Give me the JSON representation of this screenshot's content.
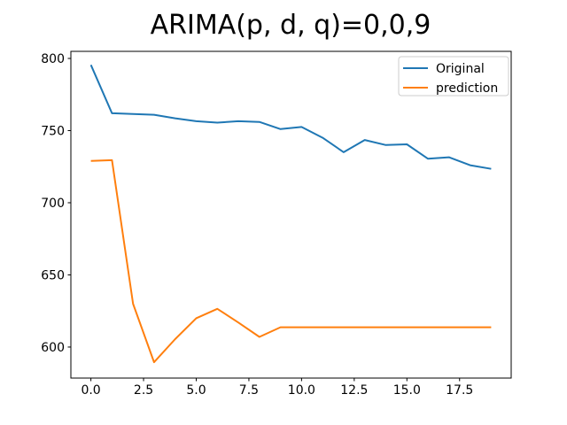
{
  "chart_data": {
    "type": "line",
    "title": "ARIMA(p, d, q)=0,0,9",
    "xlabel": "",
    "ylabel": "",
    "x": [
      0,
      1,
      2,
      3,
      4,
      5,
      6,
      7,
      8,
      9,
      10,
      11,
      12,
      13,
      14,
      15,
      16,
      17,
      18,
      19
    ],
    "series": [
      {
        "name": "Original",
        "color": "#1f77b4",
        "values": [
          795.5,
          762,
          761.5,
          761,
          758.5,
          756.5,
          755.5,
          756.5,
          756,
          751,
          752.5,
          745,
          735,
          743.5,
          740,
          740.5,
          730.5,
          731.5,
          726,
          723.5
        ]
      },
      {
        "name": "prediction",
        "color": "#ff7f0e",
        "values": [
          729,
          729.5,
          630,
          589.5,
          605.5,
          620,
          626.5,
          617,
          607,
          613.7,
          613.7,
          613.7,
          613.7,
          613.7,
          613.7,
          613.7,
          613.7,
          613.7,
          613.7,
          613.7
        ]
      }
    ],
    "xlim": [
      -0.95,
      19.95
    ],
    "ylim": [
      578.5,
      804.9
    ],
    "xticks": [
      0.0,
      2.5,
      5.0,
      7.5,
      10.0,
      12.5,
      15.0,
      17.5
    ],
    "xtick_labels": [
      "0.0",
      "2.5",
      "5.0",
      "7.5",
      "10.0",
      "12.5",
      "15.0",
      "17.5"
    ],
    "yticks": [
      600,
      650,
      700,
      750,
      800
    ],
    "ytick_labels": [
      "600",
      "650",
      "700",
      "750",
      "800"
    ],
    "grid": false,
    "legend_position": "upper right",
    "legend_entries": [
      "Original",
      "prediction"
    ],
    "background_color": "#ffffff",
    "spine_color": "#000000"
  }
}
